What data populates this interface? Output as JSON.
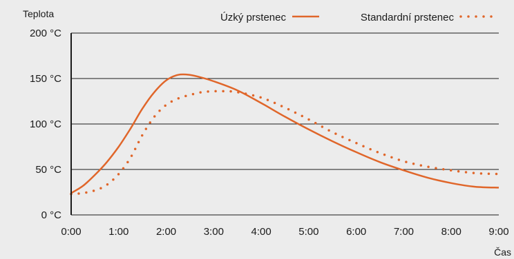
{
  "chart_data": {
    "type": "line",
    "ylabel": "Teplota",
    "xlabel": "Čas",
    "x_ticks": [
      "0:00",
      "1:00",
      "2:00",
      "3:00",
      "4:00",
      "5:00",
      "6:00",
      "7:00",
      "8:00",
      "9:00"
    ],
    "y_ticks": [
      {
        "value": 0,
        "label": "0 °C"
      },
      {
        "value": 50,
        "label": "50 °C"
      },
      {
        "value": 100,
        "label": "100 °C"
      },
      {
        "value": 150,
        "label": "150 °C"
      },
      {
        "value": 200,
        "label": "200 °C"
      }
    ],
    "xlim": [
      0,
      9
    ],
    "ylim": [
      0,
      200
    ],
    "grid": "horizontal",
    "legend_position": "top-right",
    "series": [
      {
        "name": "Úzký prstenec",
        "style": "solid",
        "color": "#e0662a",
        "x": [
          0,
          0.25,
          0.5,
          0.75,
          1,
          1.25,
          1.5,
          1.75,
          2,
          2.25,
          2.5,
          2.75,
          3,
          3.5,
          4,
          4.5,
          5,
          5.5,
          6,
          6.5,
          7,
          7.5,
          8,
          8.5,
          9
        ],
        "y": [
          24,
          32,
          44,
          58,
          75,
          95,
          117,
          135,
          148,
          154,
          154,
          151,
          147,
          137,
          123,
          108,
          94,
          81,
          69,
          58,
          49,
          41,
          35,
          31,
          30
        ]
      },
      {
        "name": "Standardní prstenec",
        "style": "dotted",
        "color": "#e0662a",
        "x": [
          0,
          0.25,
          0.5,
          0.75,
          1,
          1.25,
          1.5,
          1.75,
          2,
          2.25,
          2.5,
          2.75,
          3,
          3.25,
          3.5,
          4,
          4.5,
          5,
          5.5,
          6,
          6.5,
          7,
          7.5,
          8,
          8.5,
          9
        ],
        "y": [
          23,
          24,
          27,
          33,
          45,
          63,
          88,
          108,
          121,
          128,
          132,
          135,
          136,
          136,
          135,
          129,
          118,
          105,
          91,
          79,
          68,
          59,
          53,
          49,
          46,
          45
        ]
      }
    ]
  }
}
